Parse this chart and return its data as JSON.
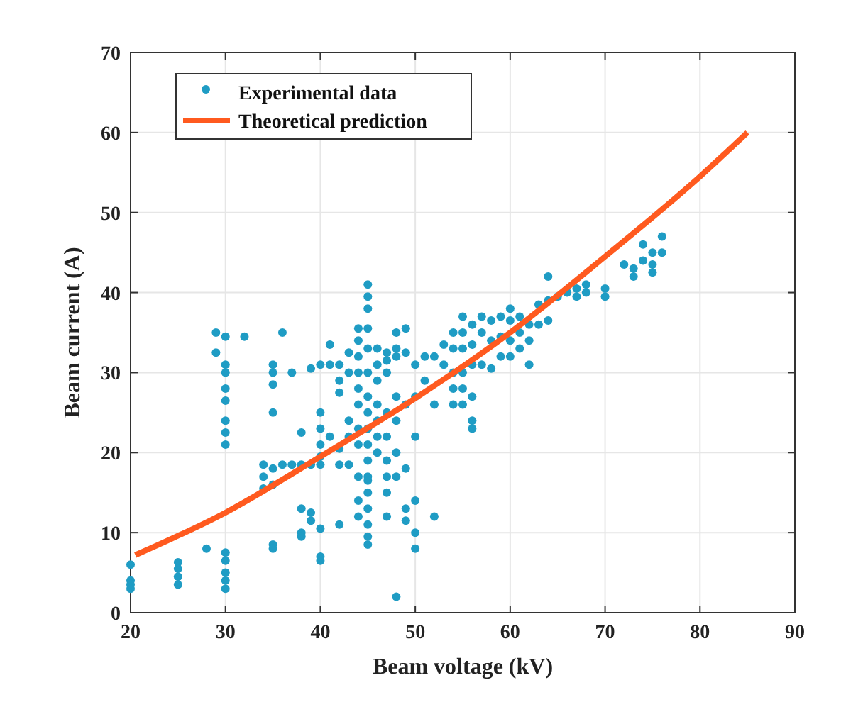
{
  "chart_data": {
    "type": "scatter",
    "xlabel": "Beam voltage (kV)",
    "ylabel": "Beam current (A)",
    "xlim": [
      20,
      90
    ],
    "ylim": [
      0,
      70
    ],
    "xticks": [
      20,
      30,
      40,
      50,
      60,
      70,
      80,
      90
    ],
    "yticks": [
      0,
      10,
      20,
      30,
      40,
      50,
      60,
      70
    ],
    "grid": true,
    "legend": "top left",
    "series": [
      {
        "name": "Experimental data",
        "color": "#1f9cc4",
        "type": "scatter",
        "marker": "circle",
        "x": [
          20,
          20,
          20,
          20,
          25,
          25,
          25,
          25,
          28,
          29,
          29,
          30,
          30,
          30,
          30,
          30,
          30,
          30,
          30,
          30,
          30,
          30,
          30,
          30,
          32,
          34,
          34,
          34,
          35,
          35,
          35,
          35,
          35,
          35,
          35,
          35,
          36,
          36,
          37,
          37,
          38,
          38,
          38,
          38,
          38,
          39,
          39,
          39,
          39,
          40,
          40,
          40,
          40,
          40,
          40,
          40,
          40,
          40,
          41,
          41,
          41,
          42,
          42,
          42,
          42,
          42,
          42,
          43,
          43,
          43,
          43,
          43,
          44,
          44,
          44,
          44,
          44,
          44,
          44,
          44,
          44,
          44,
          44,
          45,
          45,
          45,
          45,
          45,
          45,
          45,
          45,
          45,
          45,
          45,
          45,
          45,
          45,
          45,
          45,
          45,
          45,
          46,
          46,
          46,
          46,
          46,
          46,
          46,
          47,
          47,
          47,
          47,
          47,
          47,
          47,
          47,
          47,
          48,
          48,
          48,
          48,
          48,
          48,
          48,
          48,
          49,
          49,
          49,
          49,
          49,
          49,
          50,
          50,
          50,
          50,
          50,
          50,
          51,
          51,
          52,
          52,
          52,
          53,
          53,
          54,
          54,
          54,
          54,
          54,
          55,
          55,
          55,
          55,
          55,
          55,
          56,
          56,
          56,
          56,
          56,
          56,
          57,
          57,
          57,
          58,
          58,
          58,
          59,
          59,
          59,
          60,
          60,
          60,
          60,
          61,
          61,
          61,
          62,
          62,
          62,
          63,
          63,
          64,
          64,
          64,
          65,
          66,
          67,
          67,
          68,
          68,
          70,
          70,
          72,
          73,
          73,
          74,
          74,
          75,
          75,
          75,
          76,
          76
        ],
        "values": [
          6,
          4,
          3.5,
          3,
          6.3,
          5.5,
          4.5,
          3.5,
          8,
          35,
          32.5,
          34.5,
          31,
          30,
          28,
          26.5,
          24,
          22.5,
          21,
          7.5,
          6.5,
          5,
          4,
          3,
          34.5,
          18.5,
          17,
          15.5,
          31,
          30,
          28.5,
          25,
          18,
          16,
          8.5,
          8,
          35,
          18.5,
          30,
          18.5,
          22.5,
          18.5,
          13,
          10,
          9.5,
          30.5,
          18.5,
          12.5,
          11.5,
          31,
          25,
          23,
          21,
          19.5,
          18.5,
          10.5,
          7,
          6.5,
          33.5,
          31,
          22,
          31,
          29,
          27.5,
          20.5,
          18.5,
          11,
          32.5,
          30,
          24,
          22,
          18.5,
          35.5,
          34,
          32,
          30,
          28,
          26,
          23,
          21,
          17,
          14,
          12,
          41,
          39.5,
          38,
          35.5,
          33,
          30,
          27,
          25,
          23,
          21,
          19,
          17,
          15,
          13,
          11,
          9.5,
          8.5,
          16.5,
          33,
          31,
          29,
          26,
          24,
          22,
          20,
          32.5,
          31.5,
          30,
          25,
          22,
          19,
          17,
          15,
          12,
          35,
          33,
          32,
          27,
          24,
          20,
          17,
          2,
          35.5,
          32.5,
          26,
          18,
          13,
          11.5,
          31,
          27,
          22,
          14,
          10,
          8,
          32,
          29,
          32,
          26,
          12,
          33.5,
          31,
          35,
          33,
          30,
          28,
          26,
          37,
          35,
          33,
          30,
          28,
          26,
          36,
          33.5,
          31,
          27,
          24,
          23,
          37,
          35,
          31,
          36.5,
          34,
          30.5,
          37,
          34.5,
          32,
          38,
          36.5,
          34,
          32,
          37,
          35,
          33,
          36,
          34,
          31,
          38.5,
          36,
          42,
          39,
          36.5,
          39.5,
          40,
          40.5,
          39.5,
          41,
          40,
          40.5,
          39.5,
          43.5,
          43,
          42,
          46,
          44,
          45,
          43.5,
          42.5,
          47,
          45
        ]
      },
      {
        "name": "Theoretical prediction",
        "color": "#ff5a1f",
        "type": "line",
        "marker": "none",
        "line_style": "solid",
        "x": [
          20.5,
          30,
          40,
          50,
          60,
          70,
          80,
          85
        ],
        "values": [
          7.2,
          12.5,
          19.5,
          26.8,
          35,
          44.5,
          54.5,
          60
        ]
      }
    ]
  }
}
